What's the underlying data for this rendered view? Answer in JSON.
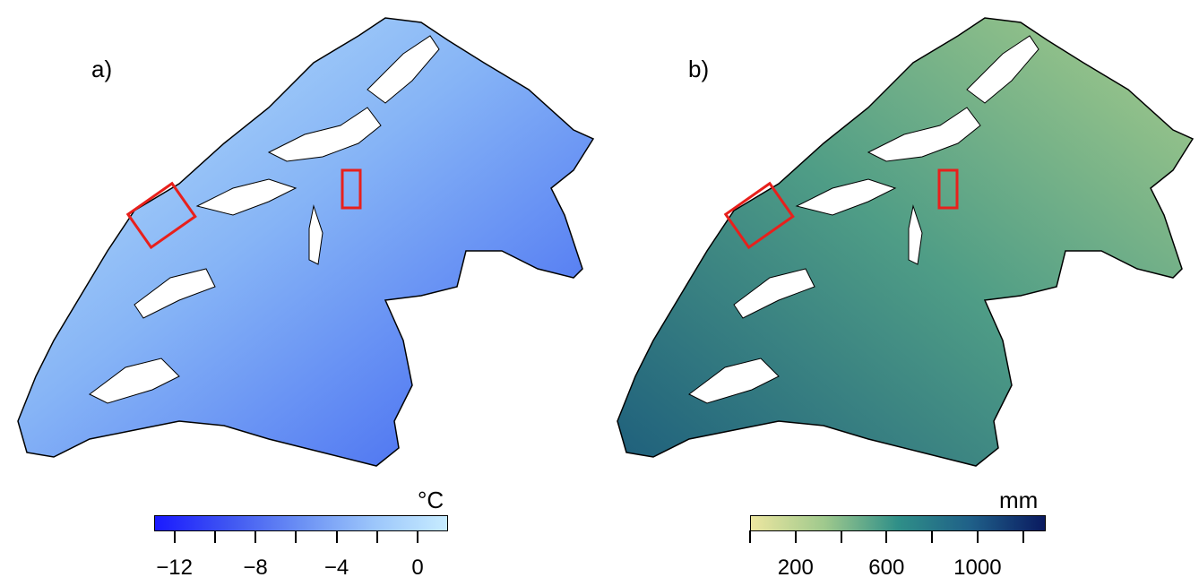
{
  "panels": [
    {
      "label": "a)",
      "unit": "°C",
      "colorbar": {
        "range": [
          -13,
          1.5
        ],
        "colors": [
          "#1a1aff",
          "#3f55f2",
          "#6b90f4",
          "#9cc6fb",
          "#c7ecff"
        ],
        "ticks": [
          -12,
          -10,
          -8,
          -6,
          -4,
          -2,
          0
        ],
        "tick_labels": [
          {
            "value": -12,
            "text": "−12"
          },
          {
            "value": -8,
            "text": "−8"
          },
          {
            "value": -4,
            "text": "−4"
          },
          {
            "value": 0,
            "text": "0"
          }
        ]
      },
      "map_colors": {
        "light": "#bfe6fb",
        "mid": "#86b4f6",
        "dark": "#3a5ef0"
      }
    },
    {
      "label": "b)",
      "unit": "mm",
      "colorbar": {
        "range": [
          0,
          1300
        ],
        "colors": [
          "#ece6a0",
          "#9fc98d",
          "#2f8f88",
          "#1f5f88",
          "#0a1a60"
        ],
        "ticks": [
          0,
          200,
          400,
          600,
          800,
          1000,
          1200
        ],
        "tick_labels": [
          {
            "value": 200,
            "text": "200"
          },
          {
            "value": 600,
            "text": "600"
          },
          {
            "value": 1000,
            "text": "1000"
          }
        ]
      },
      "map_colors": {
        "light": "#a9cd8b",
        "mid": "#4f9d86",
        "dark": "#1e5f7c"
      }
    }
  ],
  "highlight_color": "#e8201c"
}
